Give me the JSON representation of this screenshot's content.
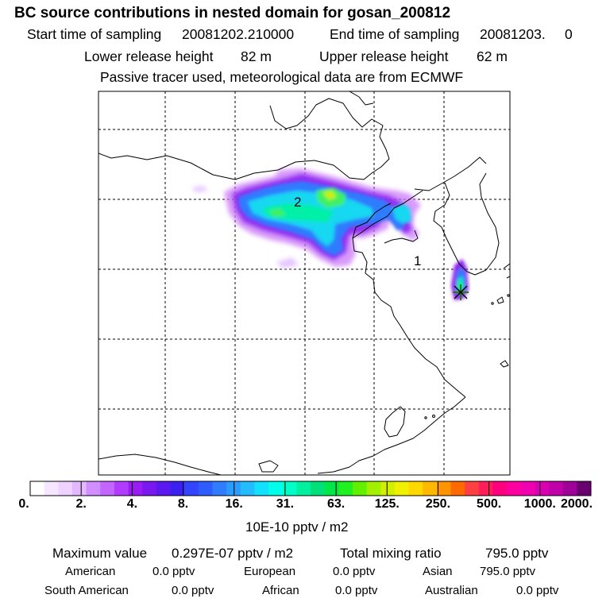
{
  "header": {
    "title": "BC  source contributions in nested domain for gosan_200812",
    "start_label": "Start time of sampling",
    "start_value": "20081202.210000",
    "end_label": "End time of sampling",
    "end_value": "20081203.     0",
    "lower_label": "Lower release height",
    "lower_value": "82 m",
    "upper_label": "Upper release height",
    "upper_value": "62 m",
    "note": "Passive tracer used, meteorological data are from ECMWF"
  },
  "map": {
    "markers": [
      {
        "label": "2"
      },
      {
        "label": "1"
      }
    ],
    "receptor_icon": "star-receptor-icon",
    "colors": {
      "border": "#000000",
      "grid": "#000000"
    }
  },
  "colorbar": {
    "ticks": [
      "0.",
      "2.",
      "4.",
      "8.",
      "16.",
      "31.",
      "63.",
      "125.",
      "250.",
      "500.",
      "1000.",
      "2000."
    ],
    "unit": "10E-10 pptv / m2",
    "colors": [
      "#ffffff",
      "#f6e6ff",
      "#eed2ff",
      "#e4b8ff",
      "#d08eff",
      "#c266ff",
      "#b13cff",
      "#9a1cf2",
      "#7a18f0",
      "#5b18f0",
      "#3c20f2",
      "#3344ff",
      "#2f5cff",
      "#2f7cff",
      "#2a9cff",
      "#25bcff",
      "#12e0ff",
      "#00ffea",
      "#00ffc8",
      "#00f0a0",
      "#00e078",
      "#00e848",
      "#20f020",
      "#60f000",
      "#a0f000",
      "#d0f000",
      "#f0f000",
      "#ffd800",
      "#ffb800",
      "#ff9400",
      "#ff6a00",
      "#ff4040",
      "#ff1e5a",
      "#ff0080",
      "#ff00a0",
      "#f000b0",
      "#d800b0",
      "#c000a8",
      "#a0009a",
      "#6a0070"
    ]
  },
  "footer": {
    "max_label": "Maximum value",
    "max_value": "0.297E-07 pptv / m2",
    "total_label": "Total mixing ratio",
    "total_value": "795.0 pptv",
    "regions": [
      {
        "name": "American",
        "value": "0.0 pptv"
      },
      {
        "name": "European",
        "value": "0.0 pptv"
      },
      {
        "name": "Asian",
        "value": "795.0 pptv"
      },
      {
        "name": "South American",
        "value": "0.0 pptv"
      },
      {
        "name": "African",
        "value": "0.0 pptv"
      },
      {
        "name": "Australian",
        "value": "0.0 pptv"
      }
    ]
  }
}
